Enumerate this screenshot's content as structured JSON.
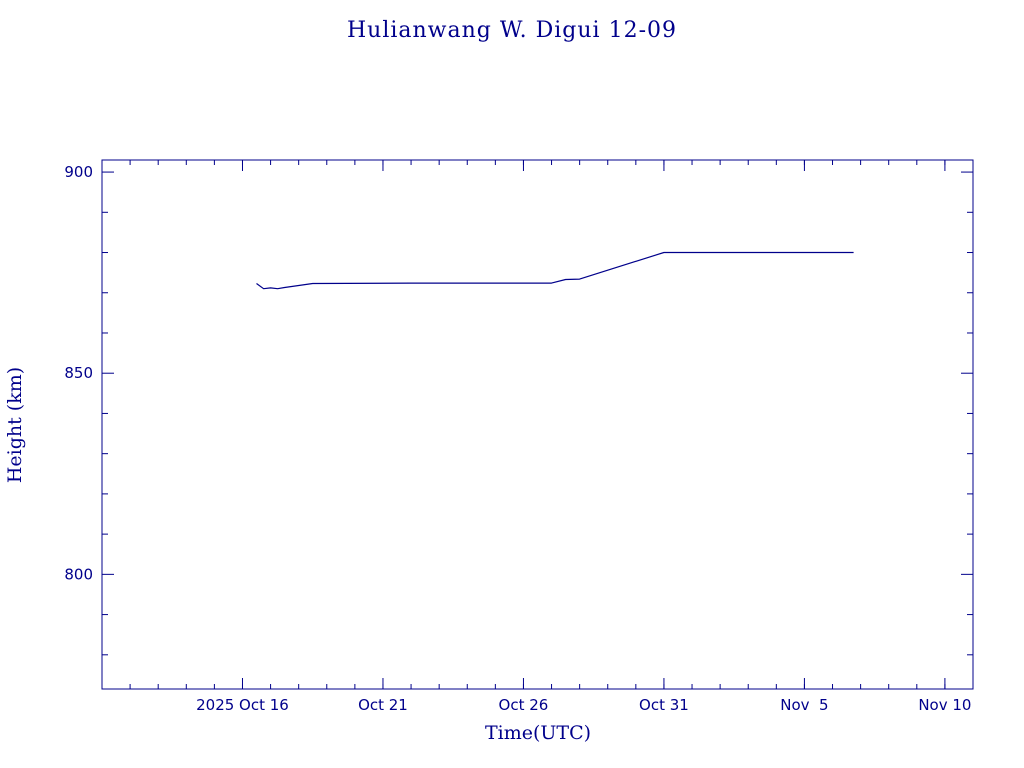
{
  "colors": {
    "ink": "#00008b",
    "background": "#ffffff"
  },
  "chart_data": {
    "type": "line",
    "title": "Hulianwang W. Digui 12-09",
    "xlabel": "Time(UTC)",
    "ylabel": "Height (km)",
    "x_unit": "date (UTC)",
    "xlim": [
      "2025-10-11",
      "2025-11-11"
    ],
    "ylim": [
      771.5,
      903
    ],
    "x_major_ticks": [
      {
        "date": "2025-10-16",
        "label": "2025 Oct 16"
      },
      {
        "date": "2025-10-21",
        "label": "Oct 21"
      },
      {
        "date": "2025-10-26",
        "label": "Oct 26"
      },
      {
        "date": "2025-10-31",
        "label": "Oct 31"
      },
      {
        "date": "2025-11-05",
        "label": "Nov  5"
      },
      {
        "date": "2025-11-10",
        "label": "Nov 10"
      }
    ],
    "y_major_ticks": [
      {
        "value": 800,
        "label": "800"
      },
      {
        "value": 850,
        "label": "850"
      },
      {
        "value": 900,
        "label": "900"
      }
    ],
    "y_minor_step": 10,
    "grid": false,
    "series": [
      {
        "values": [
          {
            "x": "2025-10-16T12:00",
            "y": 872.3
          },
          {
            "x": "2025-10-16T18:00",
            "y": 871.0
          },
          {
            "x": "2025-10-17T00:00",
            "y": 871.2
          },
          {
            "x": "2025-10-17T06:00",
            "y": 871.0
          },
          {
            "x": "2025-10-17T12:00",
            "y": 871.3
          },
          {
            "x": "2025-10-18T00:00",
            "y": 871.8
          },
          {
            "x": "2025-10-18T12:00",
            "y": 872.3
          },
          {
            "x": "2025-10-22T00:00",
            "y": 872.4
          },
          {
            "x": "2025-10-26T00:00",
            "y": 872.4
          },
          {
            "x": "2025-10-27T00:00",
            "y": 872.4
          },
          {
            "x": "2025-10-27T12:00",
            "y": 873.3
          },
          {
            "x": "2025-10-28T00:00",
            "y": 873.4
          },
          {
            "x": "2025-10-31T00:00",
            "y": 880.0
          },
          {
            "x": "2025-11-03T00:00",
            "y": 880.0
          },
          {
            "x": "2025-11-06T18:00",
            "y": 880.0
          }
        ]
      }
    ]
  }
}
